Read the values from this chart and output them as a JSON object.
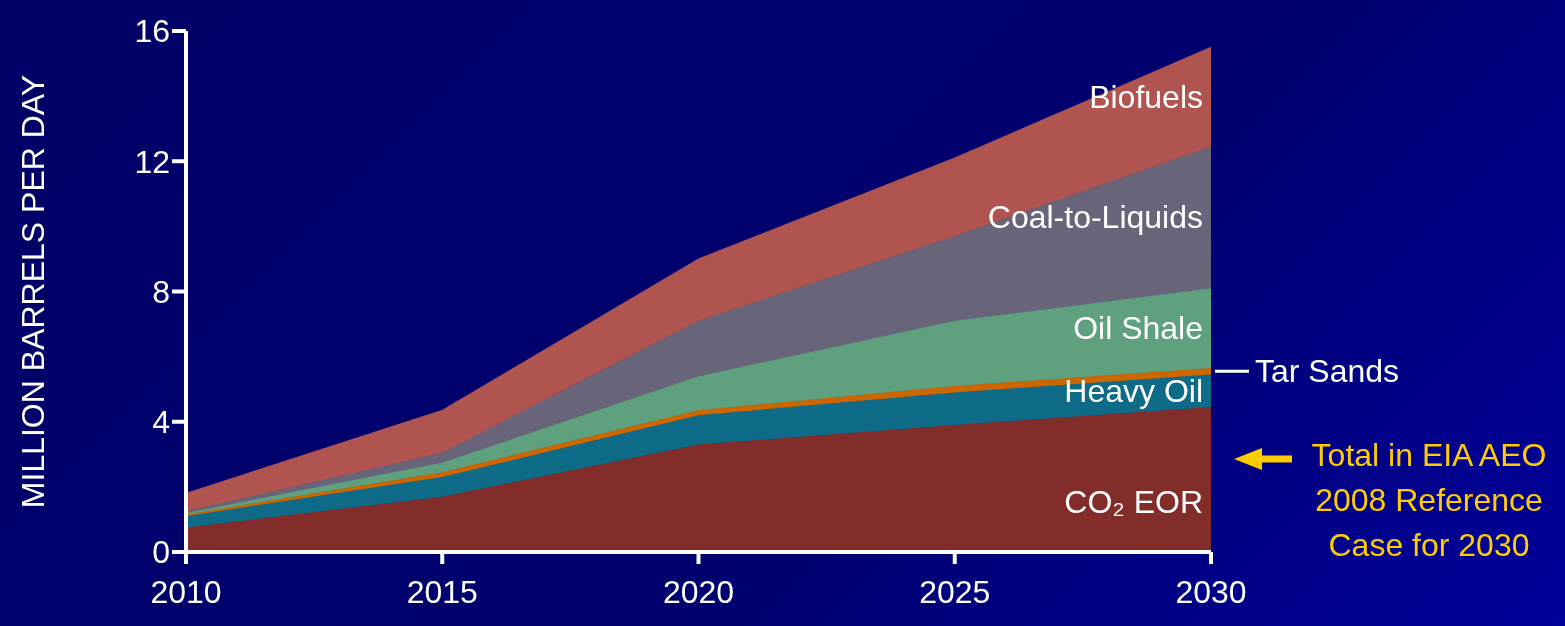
{
  "chart_data": {
    "type": "area",
    "stacked": true,
    "ylabel": "MILLION BARRELS PER DAY",
    "x": [
      2010,
      2015,
      2020,
      2025,
      2030
    ],
    "xlim": [
      2010,
      2030
    ],
    "xticks": [
      2010,
      2015,
      2020,
      2025,
      2030
    ],
    "ylim": [
      0,
      16
    ],
    "yticks": [
      0,
      4,
      8,
      12,
      16
    ],
    "grid": false,
    "legend": false,
    "series": [
      {
        "name": "CO₂ EOR",
        "color": "#832d2b",
        "values": [
          0.75,
          1.7,
          3.3,
          3.9,
          4.45
        ]
      },
      {
        "name": "Heavy Oil",
        "color": "#0e6b88",
        "values": [
          0.35,
          0.6,
          0.9,
          1.0,
          1.0
        ]
      },
      {
        "name": "Tar Sands",
        "color": "#cc6600",
        "values": [
          0.05,
          0.15,
          0.15,
          0.2,
          0.2
        ]
      },
      {
        "name": "Oil Shale",
        "color": "#5fa07f",
        "values": [
          0.05,
          0.3,
          1.05,
          2.0,
          2.45
        ]
      },
      {
        "name": "Coal-to-Liquids",
        "color": "#686479",
        "values": [
          0.05,
          0.3,
          1.7,
          2.6,
          4.35
        ]
      },
      {
        "name": "Biofuels",
        "color": "#b05450",
        "values": [
          0.55,
          1.3,
          1.9,
          2.4,
          3.05
        ]
      }
    ],
    "annotations": [
      "Total in EIA AEO 2008 Reference Case for 2030"
    ]
  }
}
